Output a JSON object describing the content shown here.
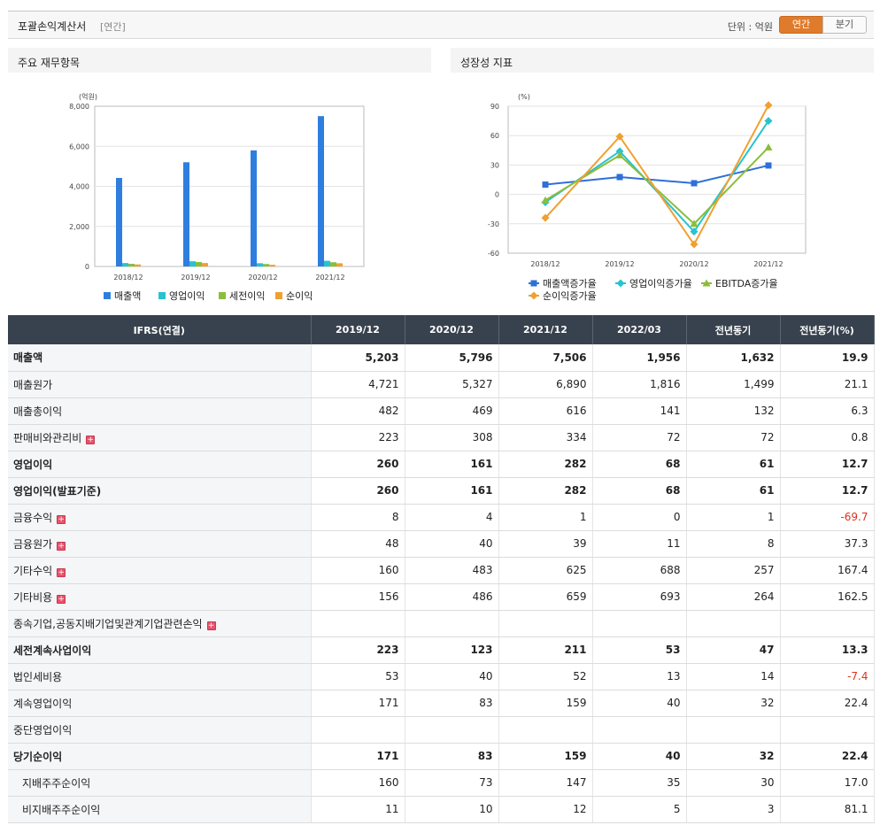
{
  "header": {
    "title": "포괄손익계산서",
    "period_tag": "[연간]",
    "unit_label": "단위 : 억원",
    "toggle": {
      "annual": "연간",
      "quarterly": "분기"
    }
  },
  "left_panel": {
    "title": "주요 재무항목"
  },
  "right_panel": {
    "title": "성장성 지표"
  },
  "chart_data": [
    {
      "type": "bar",
      "ylabel": "(억원)",
      "ylim": [
        0,
        8000
      ],
      "yticks": [
        "0",
        "2,000",
        "4,000",
        "6,000",
        "8,000"
      ],
      "categories": [
        "2018/12",
        "2019/12",
        "2020/12",
        "2021/12"
      ],
      "series": [
        {
          "name": "매출액",
          "color": "#2e7ee0",
          "values": [
            4420,
            5203,
            5796,
            7506
          ]
        },
        {
          "name": "영업이익",
          "color": "#28c3cf",
          "values": [
            170,
            260,
            161,
            282
          ]
        },
        {
          "name": "세전이익",
          "color": "#8bbd3c",
          "values": [
            130,
            223,
            123,
            211
          ]
        },
        {
          "name": "순이익",
          "color": "#f0a030",
          "values": [
            100,
            171,
            83,
            159
          ]
        }
      ],
      "grid": true,
      "legend": "bottom"
    },
    {
      "type": "line",
      "ylabel": "(%)",
      "ylim": [
        -60,
        90
      ],
      "yticks": [
        "-60",
        "-30",
        "0",
        "30",
        "60",
        "90"
      ],
      "categories": [
        "2018/12",
        "2019/12",
        "2020/12",
        "2021/12"
      ],
      "series": [
        {
          "name": "매출액증가율",
          "color": "#2e6fd8",
          "marker": "square",
          "values": [
            10,
            17.7,
            11.4,
            29.5
          ]
        },
        {
          "name": "영업이익증가율",
          "color": "#28c3cf",
          "marker": "diamond",
          "values": [
            -8,
            44,
            -38,
            75
          ]
        },
        {
          "name": "EBITDA증가율",
          "color": "#8bbd3c",
          "marker": "triangle",
          "values": [
            -6,
            40,
            -30,
            48
          ]
        },
        {
          "name": "순이익증가율",
          "color": "#f0a030",
          "marker": "diamond",
          "values": [
            -24,
            59,
            -51,
            91
          ]
        }
      ],
      "grid": true,
      "legend": "bottom"
    }
  ],
  "table": {
    "header": [
      "IFRS(연결)",
      "2019/12",
      "2020/12",
      "2021/12",
      "2022/03",
      "전년동기",
      "전년동기(%)"
    ],
    "rows": [
      {
        "label": "매출액",
        "bold": true,
        "values": [
          "5,203",
          "5,796",
          "7,506",
          "1,956",
          "1,632",
          "19.9"
        ]
      },
      {
        "label": "매출원가",
        "values": [
          "4,721",
          "5,327",
          "6,890",
          "1,816",
          "1,499",
          "21.1"
        ]
      },
      {
        "label": "매출총이익",
        "values": [
          "482",
          "469",
          "616",
          "141",
          "132",
          "6.3"
        ]
      },
      {
        "label": "판매비와관리비",
        "expand": true,
        "values": [
          "223",
          "308",
          "334",
          "72",
          "72",
          "0.8"
        ]
      },
      {
        "label": "영업이익",
        "bold": true,
        "values": [
          "260",
          "161",
          "282",
          "68",
          "61",
          "12.7"
        ]
      },
      {
        "label": "영업이익(발표기준)",
        "bold": true,
        "values": [
          "260",
          "161",
          "282",
          "68",
          "61",
          "12.7"
        ]
      },
      {
        "label": "금융수익",
        "expand": true,
        "values": [
          "8",
          "4",
          "1",
          "0",
          "1",
          "-69.7"
        ]
      },
      {
        "label": "금융원가",
        "expand": true,
        "values": [
          "48",
          "40",
          "39",
          "11",
          "8",
          "37.3"
        ]
      },
      {
        "label": "기타수익",
        "expand": true,
        "values": [
          "160",
          "483",
          "625",
          "688",
          "257",
          "167.4"
        ]
      },
      {
        "label": "기타비용",
        "expand": true,
        "values": [
          "156",
          "486",
          "659",
          "693",
          "264",
          "162.5"
        ]
      },
      {
        "label": "종속기업,공동지배기업및관계기업관련손익",
        "expand": true,
        "values": [
          "",
          "",
          "",
          "",
          "",
          ""
        ]
      },
      {
        "label": "세전계속사업이익",
        "bold": true,
        "values": [
          "223",
          "123",
          "211",
          "53",
          "47",
          "13.3"
        ]
      },
      {
        "label": "법인세비용",
        "values": [
          "53",
          "40",
          "52",
          "13",
          "14",
          "-7.4"
        ]
      },
      {
        "label": "계속영업이익",
        "values": [
          "171",
          "83",
          "159",
          "40",
          "32",
          "22.4"
        ]
      },
      {
        "label": "중단영업이익",
        "values": [
          "",
          "",
          "",
          "",
          "",
          ""
        ]
      },
      {
        "label": "당기순이익",
        "bold": true,
        "values": [
          "171",
          "83",
          "159",
          "40",
          "32",
          "22.4"
        ]
      },
      {
        "label": "지배주주순이익",
        "sub": true,
        "values": [
          "160",
          "73",
          "147",
          "35",
          "30",
          "17.0"
        ]
      },
      {
        "label": "비지배주주순이익",
        "sub": true,
        "values": [
          "11",
          "10",
          "12",
          "5",
          "3",
          "81.1"
        ]
      }
    ]
  }
}
